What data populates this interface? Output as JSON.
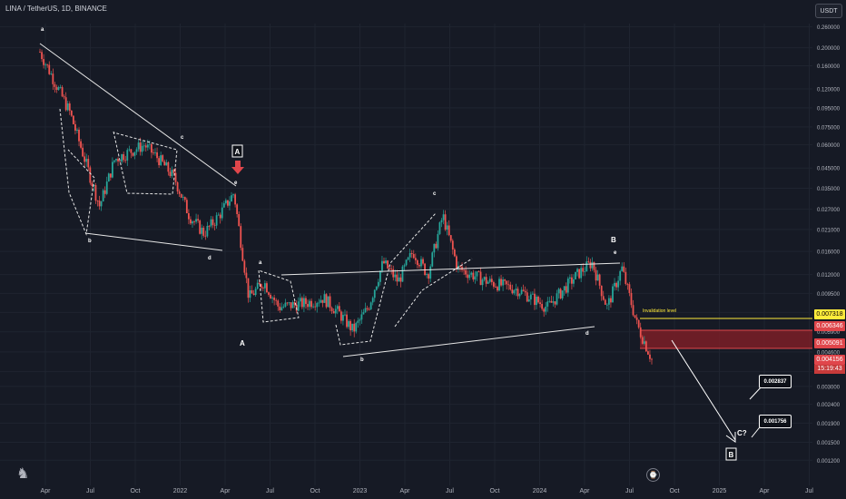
{
  "header": {
    "symbol": "LINA / TetherUS, 1D, BINANCE",
    "currency_button": "USDT"
  },
  "chart_data": {
    "type": "candlestick",
    "title": "LINA / TetherUS, 1D, BINANCE",
    "y_scale": "log",
    "ylim": [
      0.0011,
      0.27
    ],
    "y_ticks": [
      "0.260000",
      "0.200000",
      "0.160000",
      "0.120000",
      "0.095000",
      "0.075000",
      "0.060000",
      "0.045000",
      "0.035000",
      "0.027000",
      "0.021000",
      "0.016000",
      "0.012000",
      "0.009500",
      "0.007500",
      "0.005900",
      "0.004600",
      "0.003600",
      "0.003000",
      "0.002400",
      "0.001900",
      "0.001500",
      "0.001200"
    ],
    "x_ticks": [
      "Apr",
      "Jul",
      "Oct",
      "2022",
      "Apr",
      "Jul",
      "Oct",
      "2023",
      "Apr",
      "Jul",
      "Oct",
      "2024",
      "Apr",
      "Jul",
      "Oct",
      "2025",
      "Apr",
      "Jul"
    ],
    "approx_close_path": [
      [
        "2021-03",
        0.19
      ],
      [
        "2021-05",
        0.09
      ],
      [
        "2021-07",
        0.028
      ],
      [
        "2021-08",
        0.05
      ],
      [
        "2021-09",
        0.055
      ],
      [
        "2021-10",
        0.06
      ],
      [
        "2021-11",
        0.05
      ],
      [
        "2021-12",
        0.04
      ],
      [
        "2022-01",
        0.025
      ],
      [
        "2022-02",
        0.02
      ],
      [
        "2022-03",
        0.025
      ],
      [
        "2022-04",
        0.033
      ],
      [
        "2022-05",
        0.009
      ],
      [
        "2022-06",
        0.011
      ],
      [
        "2022-07",
        0.008
      ],
      [
        "2022-09",
        0.0085
      ],
      [
        "2022-10",
        0.009
      ],
      [
        "2022-11",
        0.0075
      ],
      [
        "2022-12",
        0.006
      ],
      [
        "2023-01",
        0.008
      ],
      [
        "2023-02",
        0.014
      ],
      [
        "2023-03",
        0.011
      ],
      [
        "2023-04",
        0.016
      ],
      [
        "2023-05",
        0.012
      ],
      [
        "2023-06",
        0.025
      ],
      [
        "2023-07",
        0.013
      ],
      [
        "2023-09",
        0.011
      ],
      [
        "2023-11",
        0.01
      ],
      [
        "2024-01",
        0.008
      ],
      [
        "2024-03",
        0.012
      ],
      [
        "2024-04",
        0.014
      ],
      [
        "2024-05",
        0.008
      ],
      [
        "2024-06",
        0.013
      ],
      [
        "2024-07",
        0.0065
      ],
      [
        "2024-08",
        0.0042
      ]
    ],
    "price_markers": [
      {
        "label": "0.007318",
        "color": "#ffeb3b",
        "text_color": "#000000"
      },
      {
        "label": "0.006346",
        "color": "#e0464b",
        "text_color": "#ffffff"
      },
      {
        "label": "0.005091",
        "color": "#e0464b",
        "text_color": "#ffffff"
      },
      {
        "label": "0.004156",
        "color": "#e0464b",
        "text_color": "#ffffff"
      }
    ],
    "countdown": "15:19:43",
    "annotations": {
      "wave_labels": [
        "a",
        "b",
        "c",
        "d",
        "e",
        "A",
        "a",
        "b",
        "c",
        "d",
        "e",
        "B",
        "C?",
        "B"
      ],
      "invalidation_text": "Invalidation level",
      "targets": [
        "0.002837",
        "0.001756"
      ]
    },
    "colors": {
      "up": "#26a69a",
      "down": "#ef5350",
      "background": "#161a25",
      "zone": "#b7313b",
      "invalidation": "#ffeb3b"
    }
  }
}
